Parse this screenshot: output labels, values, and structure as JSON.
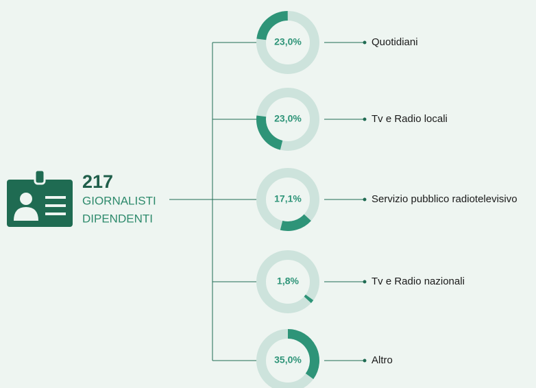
{
  "chart_data": {
    "type": "donut",
    "headline": {
      "value": 217,
      "lines": [
        "GIORNALISTI",
        "DIPENDENTI"
      ]
    },
    "categories": [
      "Quotidiani",
      "Tv e Radio locali",
      "Servizio pubblico radiotelevisivo",
      "Tv e Radio nazionali",
      "Altro"
    ],
    "values": [
      23.0,
      23.0,
      17.1,
      1.8,
      35.0
    ],
    "value_labels": [
      "23,0%",
      "23,0%",
      "17,1%",
      "1,8%",
      "35,0%"
    ],
    "color": "#2e9478",
    "track_color": "#cde3dc"
  }
}
